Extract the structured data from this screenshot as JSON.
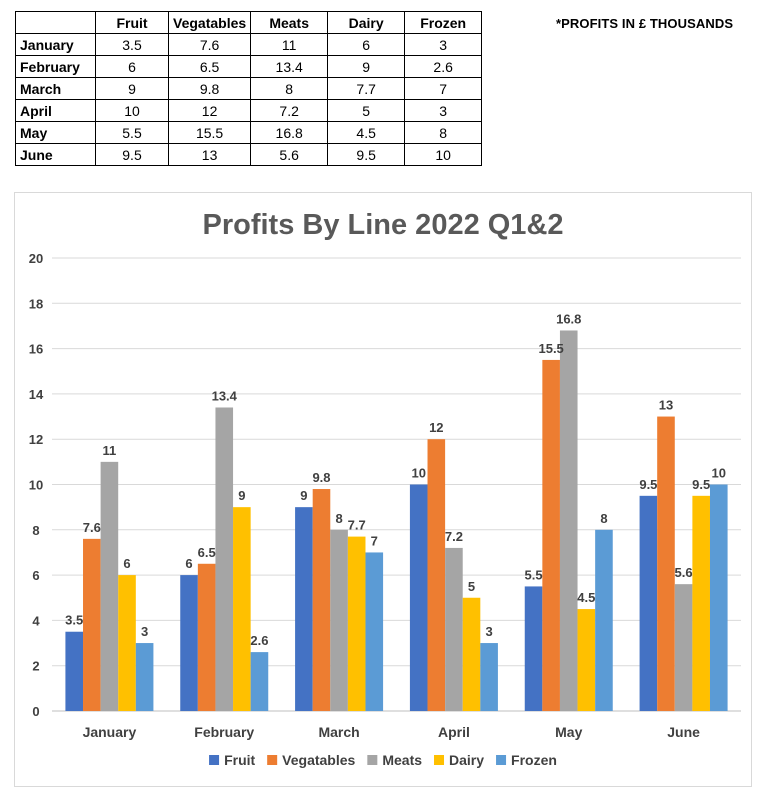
{
  "note": "*PROFITS IN £ THOUSANDS",
  "table": {
    "headers": [
      "",
      "Fruit",
      "Vegatables",
      "Meats",
      "Dairy",
      "Frozen"
    ],
    "rows": [
      {
        "month": "January",
        "values": [
          "3.5",
          "7.6",
          "11",
          "6",
          "3"
        ]
      },
      {
        "month": "February",
        "values": [
          "6",
          "6.5",
          "13.4",
          "9",
          "2.6"
        ]
      },
      {
        "month": "March",
        "values": [
          "9",
          "9.8",
          "8",
          "7.7",
          "7"
        ]
      },
      {
        "month": "April",
        "values": [
          "10",
          "12",
          "7.2",
          "5",
          "3"
        ]
      },
      {
        "month": "May",
        "values": [
          "5.5",
          "15.5",
          "16.8",
          "4.5",
          "8"
        ]
      },
      {
        "month": "June",
        "values": [
          "9.5",
          "13",
          "5.6",
          "9.5",
          "10"
        ]
      }
    ]
  },
  "chart_data": {
    "type": "bar",
    "title": "Profits By Line 2022 Q1&2",
    "xlabel": "",
    "ylabel": "",
    "ylim": [
      0,
      20
    ],
    "yticks": [
      0,
      2,
      4,
      6,
      8,
      10,
      12,
      14,
      16,
      18,
      20
    ],
    "grid": true,
    "legend_position": "bottom",
    "categories": [
      "January",
      "February",
      "March",
      "April",
      "May",
      "June"
    ],
    "series": [
      {
        "name": "Fruit",
        "color": "#4472C4",
        "values": [
          3.5,
          6,
          9,
          10,
          5.5,
          9.5
        ]
      },
      {
        "name": "Vegatables",
        "color": "#ED7D31",
        "values": [
          7.6,
          6.5,
          9.8,
          12,
          15.5,
          13
        ]
      },
      {
        "name": "Meats",
        "color": "#A5A5A5",
        "values": [
          11,
          13.4,
          8,
          7.2,
          16.8,
          5.6
        ]
      },
      {
        "name": "Dairy",
        "color": "#FFC000",
        "values": [
          6,
          9,
          7.7,
          5,
          4.5,
          9.5
        ]
      },
      {
        "name": "Frozen",
        "color": "#5B9BD5",
        "values": [
          3,
          2.6,
          7,
          3,
          8,
          10
        ]
      }
    ]
  }
}
